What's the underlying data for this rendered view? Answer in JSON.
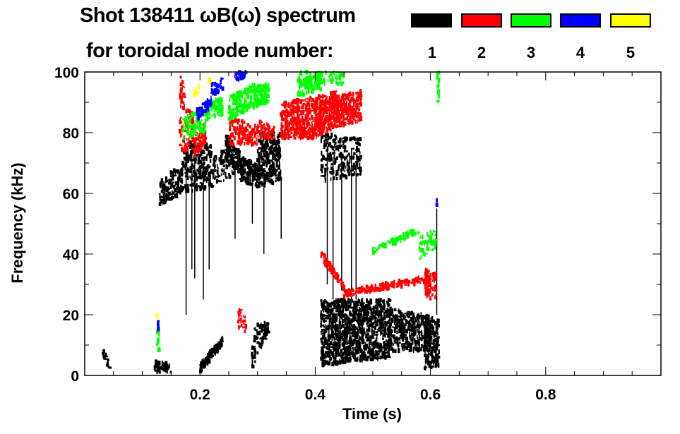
{
  "chart_data": {
    "type": "heatmap",
    "title_line1": "Shot 138411 ωB(ω) spectrum",
    "title_line2": "for toroidal mode number:",
    "xlabel": "Time (s)",
    "ylabel": "Frequency (kHz)",
    "xlim": [
      0,
      1.0
    ],
    "ylim": [
      0,
      100
    ],
    "xticks": [
      {
        "v": 0.2,
        "label": "0.2"
      },
      {
        "v": 0.4,
        "label": "0.4"
      },
      {
        "v": 0.6,
        "label": "0.6"
      },
      {
        "v": 0.8,
        "label": "0.8"
      }
    ],
    "x_minor_step": 0.05,
    "yticks": [
      {
        "v": 0,
        "label": "0"
      },
      {
        "v": 20,
        "label": "20"
      },
      {
        "v": 40,
        "label": "40"
      },
      {
        "v": 60,
        "label": "60"
      },
      {
        "v": 80,
        "label": "80"
      },
      {
        "v": 100,
        "label": "100"
      }
    ],
    "y_minor_step": 10,
    "legend": [
      {
        "mode": "1",
        "color": "#000000"
      },
      {
        "mode": "2",
        "color": "#ff0000"
      },
      {
        "mode": "3",
        "color": "#00ff00"
      },
      {
        "mode": "4",
        "color": "#0000ff"
      },
      {
        "mode": "5",
        "color": "#ffff00"
      }
    ],
    "regions_note": "each region: mode, t_start, t_end, f_low_start, f_high_start, f_low_end, f_high_end, density",
    "regions": [
      [
        1,
        0.03,
        0.045,
        6,
        10,
        1,
        4,
        15
      ],
      [
        1,
        0.12,
        0.15,
        1,
        5,
        1,
        4,
        60
      ],
      [
        1,
        0.13,
        0.17,
        56,
        64,
        60,
        70,
        150
      ],
      [
        1,
        0.17,
        0.22,
        60,
        78,
        62,
        76,
        250
      ],
      [
        1,
        0.22,
        0.26,
        62,
        72,
        66,
        76,
        100
      ],
      [
        1,
        0.245,
        0.27,
        70,
        80,
        66,
        74,
        120
      ],
      [
        1,
        0.27,
        0.3,
        64,
        72,
        62,
        70,
        150
      ],
      [
        1,
        0.3,
        0.34,
        62,
        80,
        64,
        80,
        300
      ],
      [
        1,
        0.2,
        0.24,
        1,
        4,
        10,
        13,
        120
      ],
      [
        1,
        0.29,
        0.32,
        2,
        16,
        14,
        18,
        90
      ],
      [
        1,
        0.41,
        0.48,
        64,
        80,
        66,
        78,
        250
      ],
      [
        1,
        0.41,
        0.53,
        3,
        25,
        6,
        25,
        1200
      ],
      [
        1,
        0.53,
        0.6,
        8,
        22,
        8,
        20,
        400
      ],
      [
        1,
        0.59,
        0.615,
        2,
        20,
        3,
        18,
        200
      ],
      [
        2,
        0.165,
        0.19,
        74,
        100,
        74,
        84,
        100
      ],
      [
        2,
        0.19,
        0.21,
        72,
        80,
        76,
        84,
        80
      ],
      [
        2,
        0.25,
        0.3,
        76,
        86,
        76,
        82,
        150
      ],
      [
        2,
        0.3,
        0.33,
        78,
        84,
        78,
        82,
        60
      ],
      [
        2,
        0.34,
        0.4,
        78,
        90,
        78,
        92,
        400
      ],
      [
        2,
        0.4,
        0.44,
        78,
        92,
        82,
        94,
        350
      ],
      [
        2,
        0.44,
        0.48,
        82,
        92,
        84,
        94,
        200
      ],
      [
        2,
        0.41,
        0.45,
        38,
        42,
        28,
        30,
        80
      ],
      [
        2,
        0.45,
        0.6,
        26,
        28,
        31,
        33,
        200
      ],
      [
        2,
        0.59,
        0.61,
        25,
        35,
        25,
        35,
        80
      ],
      [
        2,
        0.265,
        0.28,
        16,
        23,
        14,
        20,
        30
      ],
      [
        3,
        0.17,
        0.21,
        78,
        86,
        80,
        88,
        100
      ],
      [
        3,
        0.21,
        0.24,
        84,
        90,
        86,
        92,
        80
      ],
      [
        3,
        0.25,
        0.29,
        84,
        92,
        88,
        96,
        150
      ],
      [
        3,
        0.29,
        0.32,
        88,
        96,
        90,
        96,
        120
      ],
      [
        3,
        0.37,
        0.41,
        92,
        100,
        94,
        100,
        150
      ],
      [
        3,
        0.4,
        0.45,
        96,
        100,
        96,
        100,
        60
      ],
      [
        3,
        0.5,
        0.58,
        40,
        42,
        47,
        49,
        80
      ],
      [
        3,
        0.58,
        0.61,
        38,
        46,
        42,
        48,
        60
      ],
      [
        3,
        0.612,
        0.615,
        90,
        100,
        90,
        100,
        20
      ],
      [
        3,
        0.125,
        0.13,
        8,
        16,
        8,
        16,
        15
      ],
      [
        4,
        0.195,
        0.22,
        84,
        88,
        88,
        92,
        60
      ],
      [
        4,
        0.22,
        0.24,
        92,
        96,
        94,
        98,
        40
      ],
      [
        4,
        0.26,
        0.28,
        97,
        100,
        98,
        100,
        30
      ],
      [
        4,
        0.125,
        0.128,
        14,
        18,
        14,
        18,
        6
      ],
      [
        4,
        0.61,
        0.612,
        56,
        58,
        56,
        58,
        5
      ],
      [
        5,
        0.19,
        0.2,
        92,
        95,
        93,
        96,
        8
      ],
      [
        5,
        0.215,
        0.22,
        96,
        98,
        96,
        98,
        6
      ],
      [
        5,
        0.125,
        0.127,
        19,
        20,
        19,
        20,
        3
      ]
    ],
    "streaks_note": "vertical mode-1 streaks: time, f_low, f_high",
    "streaks": [
      [
        0.175,
        20,
        70
      ],
      [
        0.19,
        32,
        72
      ],
      [
        0.185,
        35,
        75
      ],
      [
        0.205,
        25,
        70
      ],
      [
        0.215,
        35,
        65
      ],
      [
        0.26,
        45,
        70
      ],
      [
        0.29,
        50,
        68
      ],
      [
        0.31,
        40,
        68
      ],
      [
        0.34,
        45,
        65
      ],
      [
        0.42,
        30,
        75
      ],
      [
        0.43,
        25,
        72
      ],
      [
        0.445,
        28,
        72
      ],
      [
        0.462,
        25,
        75
      ],
      [
        0.47,
        25,
        70
      ],
      [
        0.61,
        20,
        55
      ]
    ]
  }
}
